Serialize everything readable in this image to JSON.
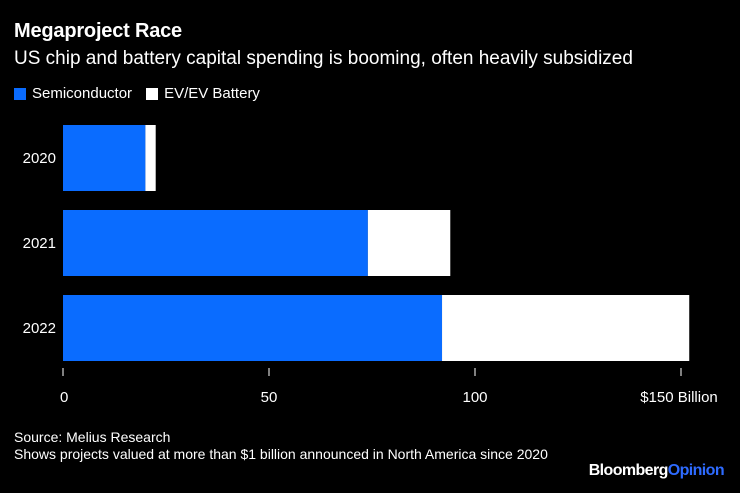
{
  "title": "Megaproject Race",
  "subtitle": "US chip and battery capital spending is booming, often heavily subsidized",
  "colors": {
    "semiconductor": "#0a6cff",
    "ev": "#ffffff",
    "background": "#000000",
    "axis": "#ffffff"
  },
  "legend": [
    {
      "label": "Semiconductor",
      "color": "#0a6cff"
    },
    {
      "label": "EV/EV Battery",
      "color": "#ffffff"
    }
  ],
  "chart_data": {
    "type": "bar",
    "orientation": "horizontal",
    "stacked": true,
    "title": "Megaproject Race",
    "subtitle": "US chip and battery capital spending is booming, often heavily subsidized",
    "categories": [
      "2020",
      "2021",
      "2022"
    ],
    "series": [
      {
        "name": "Semiconductor",
        "values": [
          20,
          74,
          92
        ]
      },
      {
        "name": "EV/EV Battery",
        "values": [
          2.5,
          20,
          60
        ]
      }
    ],
    "xlim": [
      0,
      150
    ],
    "ticks": [
      0,
      50,
      100,
      150
    ],
    "tick_labels": [
      "0",
      "50",
      "100",
      "$150 Billion"
    ],
    "xlabel": "",
    "ylabel": "",
    "grid": false,
    "legend_position": "top-left"
  },
  "footer": {
    "source": "Source: Melius Research",
    "note": "Shows projects valued at more than $1 billion announced in North America since 2020"
  },
  "brand": {
    "name": "Bloomberg",
    "suffix": "Opinion"
  }
}
